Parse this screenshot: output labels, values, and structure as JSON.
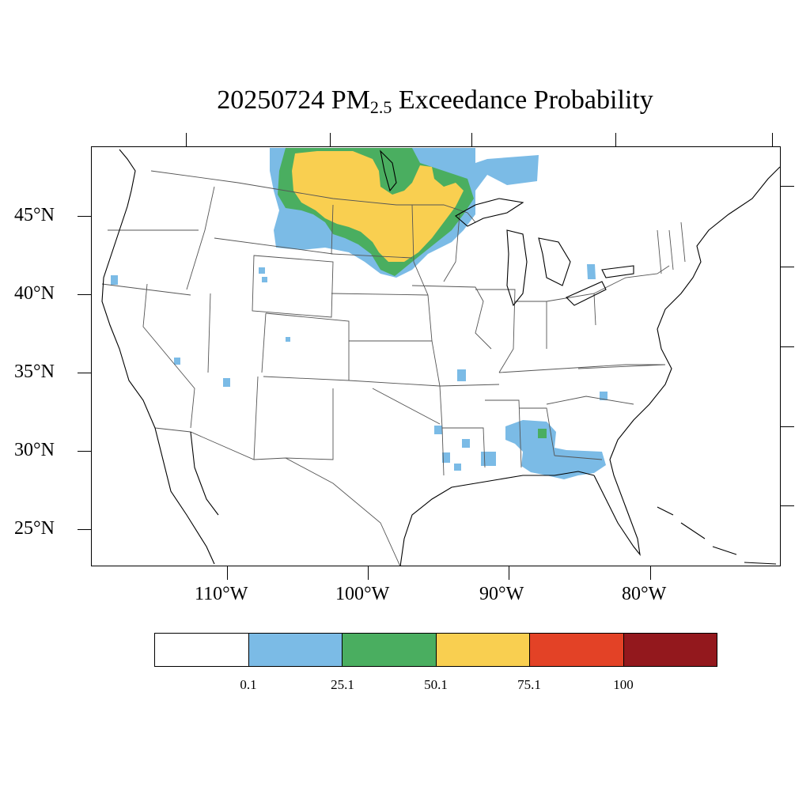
{
  "title": {
    "prefix": "20250724 PM",
    "subscript": "2.5",
    "suffix": " Exceedance Probability"
  },
  "lat_labels": [
    "45°N",
    "40°N",
    "35°N",
    "30°N",
    "25°N"
  ],
  "lon_labels": [
    "110°W",
    "100°W",
    "90°W",
    "80°W"
  ],
  "colorbar": {
    "colors": [
      "#ffffff",
      "#7bbbe6",
      "#4aae60",
      "#f9cf50",
      "#e34226",
      "#93181d"
    ],
    "labels": [
      "0.1",
      "25.1",
      "50.1",
      "75.1",
      "100"
    ]
  },
  "colors": {
    "low": "#7bbbe6",
    "mid": "#4aae60",
    "high": "#f9cf50"
  }
}
